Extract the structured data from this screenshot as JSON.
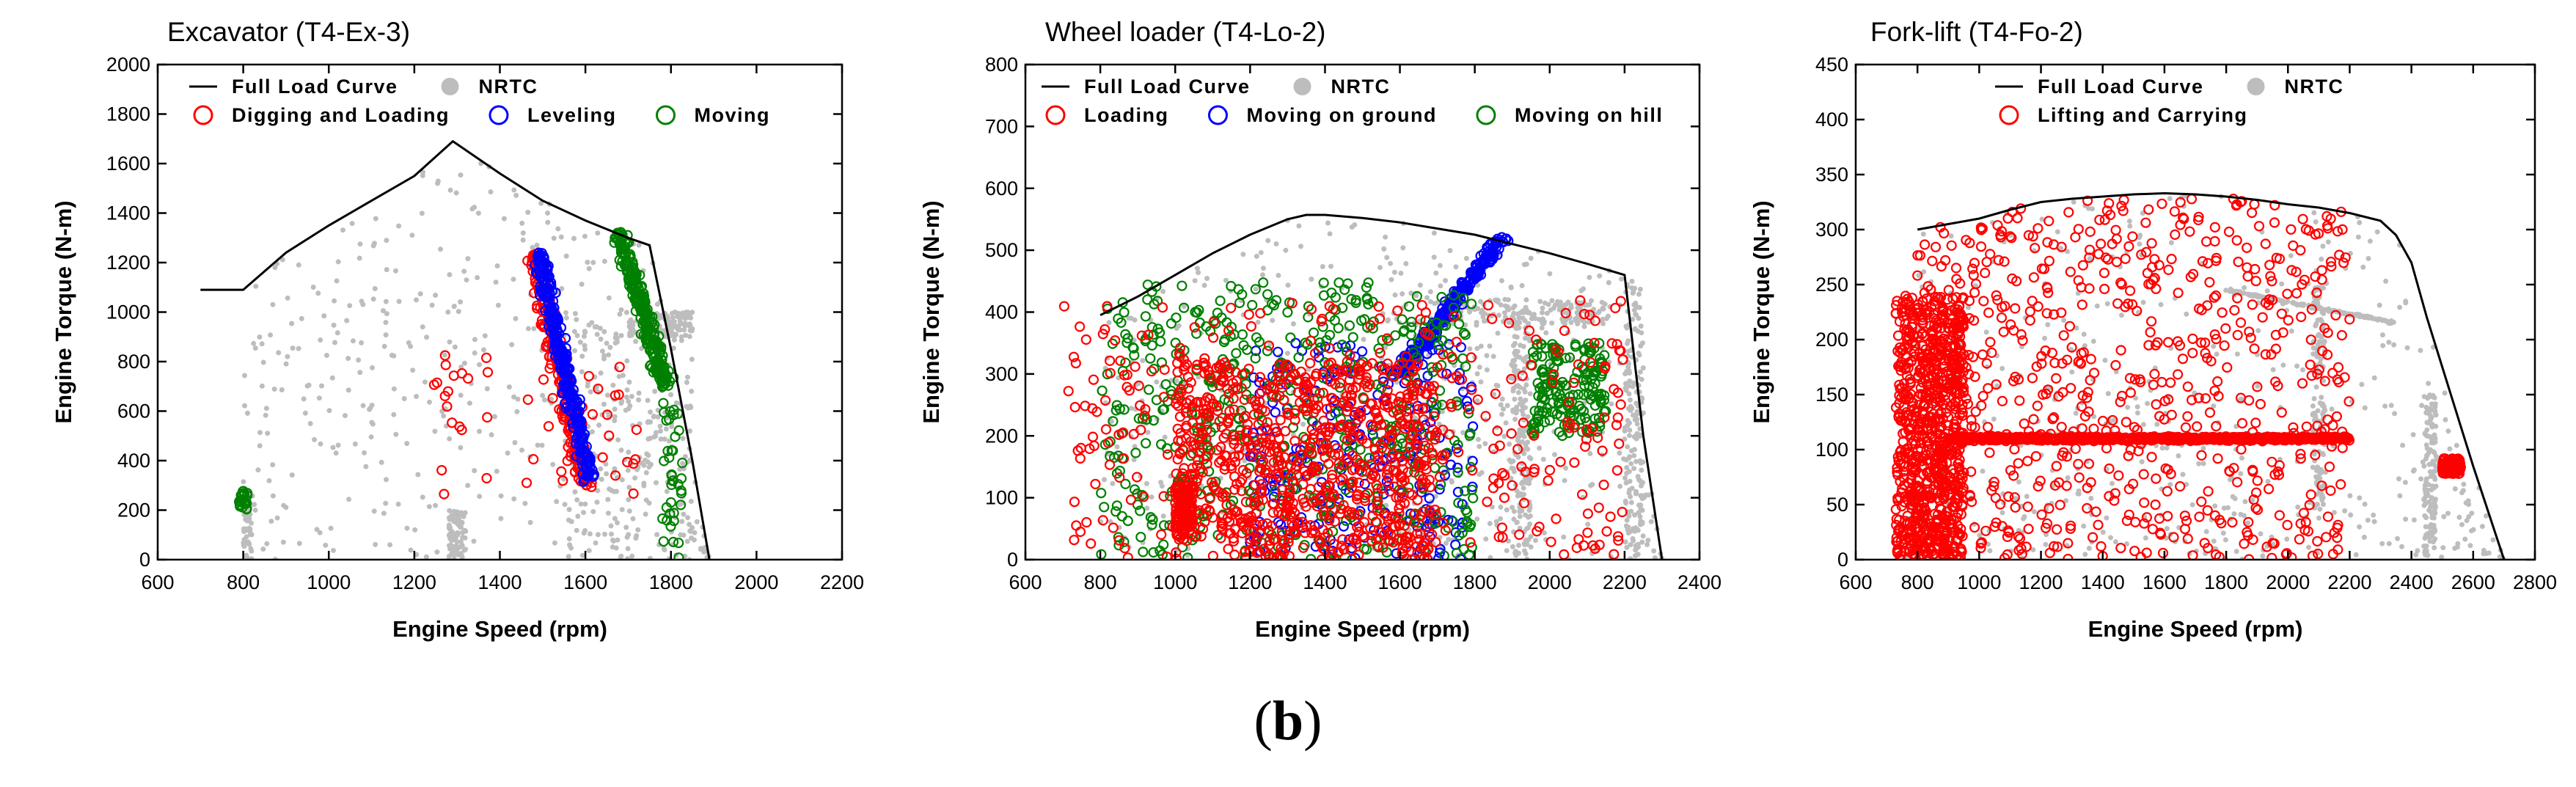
{
  "caption": {
    "open": "(",
    "letter": "b",
    "close": ")"
  },
  "chart_data": [
    {
      "type": "scatter",
      "title": "Excavator (T4-Ex-3)",
      "xlabel": "Engine Speed (rpm)",
      "ylabel": "Engine Torque (N-m)",
      "xlim": [
        600,
        2200
      ],
      "ylim": [
        0,
        2000
      ],
      "xticks": [
        600,
        800,
        1000,
        1200,
        1400,
        1600,
        1800,
        2000,
        2200
      ],
      "yticks": [
        0,
        200,
        400,
        600,
        800,
        1000,
        1200,
        1400,
        1600,
        1800,
        2000
      ],
      "full_load_curve": {
        "name": "Full Load Curve",
        "x": [
          700,
          800,
          900,
          1000,
          1100,
          1200,
          1290,
          1400,
          1500,
          1600,
          1700,
          1750,
          1800,
          1850,
          1890
        ],
        "y": [
          1090,
          1090,
          1240,
          1350,
          1450,
          1550,
          1690,
          1560,
          1450,
          1370,
          1300,
          1270,
          850,
          400,
          0
        ]
      },
      "legend": [
        {
          "name": "Full Load Curve",
          "marker": "line",
          "color": "#000000"
        },
        {
          "name": "NRTC",
          "marker": "dot",
          "color": "#bdbdbd"
        },
        {
          "name": "Digging and Loading",
          "marker": "circle",
          "color": "#ff0000"
        },
        {
          "name": "Leveling",
          "marker": "circle",
          "color": "#0000ff"
        },
        {
          "name": "Moving",
          "marker": "circle",
          "color": "#008000"
        }
      ],
      "scatter_series": [
        {
          "name": "NRTC",
          "color": "#bdbdbd",
          "filled": true,
          "radius": 3.5,
          "count": 900,
          "clusters": [
            {
              "x": [
                800,
                1890
              ],
              "y": [
                0,
                1690
              ],
              "share": 0.45,
              "envelope": true
            },
            {
              "x": [
                1550,
                1850
              ],
              "y": [
                0,
                1000
              ],
              "share": 0.25
            },
            {
              "x": [
                800,
                820
              ],
              "y": [
                0,
                260
              ],
              "share": 0.06
            },
            {
              "x": [
                1700,
                1850
              ],
              "y": [
                900,
                1000
              ],
              "share": 0.14
            },
            {
              "x": [
                1280,
                1320
              ],
              "y": [
                0,
                200
              ],
              "share": 0.1
            }
          ]
        },
        {
          "name": "Digging and Loading",
          "color": "#ff0000",
          "filled": false,
          "radius": 6,
          "count": 300,
          "clusters": [
            {
              "line": [
                [
                  1480,
                  1250
                ],
                [
                  1600,
                  300
                ]
              ],
              "spread": 35,
              "share": 0.85
            },
            {
              "x": [
                1240,
                1720
              ],
              "y": [
                250,
                850
              ],
              "share": 0.15
            }
          ]
        },
        {
          "name": "Leveling",
          "color": "#0000ff",
          "filled": false,
          "radius": 6,
          "count": 300,
          "clusters": [
            {
              "line": [
                [
                  1490,
                  1240
                ],
                [
                  1610,
                  320
                ]
              ],
              "spread": 25,
              "share": 1.0
            }
          ]
        },
        {
          "name": "Moving",
          "color": "#008000",
          "filled": false,
          "radius": 6,
          "count": 320,
          "clusters": [
            {
              "line": [
                [
                  1680,
                  1320
                ],
                [
                  1790,
                  700
                ]
              ],
              "spread": 28,
              "share": 0.8
            },
            {
              "x": [
                1780,
                1830
              ],
              "y": [
                0,
                700
              ],
              "share": 0.12
            },
            {
              "x": [
                790,
                810
              ],
              "y": [
                200,
                280
              ],
              "share": 0.08
            }
          ]
        }
      ]
    },
    {
      "type": "scatter",
      "title": "Wheel loader (T4-Lo-2)",
      "xlabel": "Engine Speed (rpm)",
      "ylabel": "Engine Torque (N-m)",
      "xlim": [
        600,
        2400
      ],
      "ylim": [
        0,
        800
      ],
      "xticks": [
        600,
        800,
        1000,
        1200,
        1400,
        1600,
        1800,
        2000,
        2200,
        2400
      ],
      "yticks": [
        0,
        100,
        200,
        300,
        400,
        500,
        600,
        700,
        800
      ],
      "full_load_curve": {
        "name": "Full Load Curve",
        "x": [
          800,
          900,
          1000,
          1100,
          1200,
          1300,
          1350,
          1400,
          1500,
          1600,
          1700,
          1800,
          1900,
          2000,
          2100,
          2200,
          2250,
          2300
        ],
        "y": [
          395,
          425,
          460,
          495,
          525,
          550,
          557,
          557,
          552,
          545,
          535,
          525,
          510,
          495,
          478,
          460,
          200,
          0
        ]
      },
      "legend": [
        {
          "name": "Full Load Curve",
          "marker": "line",
          "color": "#000000"
        },
        {
          "name": "NRTC",
          "marker": "dot",
          "color": "#bdbdbd"
        },
        {
          "name": "Loading",
          "marker": "circle",
          "color": "#ff0000"
        },
        {
          "name": "Moving on ground",
          "marker": "circle",
          "color": "#0000ff"
        },
        {
          "name": "Moving on hill",
          "marker": "circle",
          "color": "#008000"
        }
      ],
      "scatter_series": [
        {
          "name": "NRTC",
          "color": "#bdbdbd",
          "filled": true,
          "radius": 3.5,
          "count": 1100,
          "clusters": [
            {
              "x": [
                800,
                2300
              ],
              "y": [
                0,
                557
              ],
              "share": 0.4,
              "envelope": true
            },
            {
              "x": [
                1700,
                2150
              ],
              "y": [
                380,
                420
              ],
              "share": 0.15
            },
            {
              "x": [
                2200,
                2250
              ],
              "y": [
                0,
                450
              ],
              "share": 0.15
            },
            {
              "x": [
                1900,
                1950
              ],
              "y": [
                0,
                400
              ],
              "share": 0.15
            },
            {
              "x": [
                1550,
                1900
              ],
              "y": [
                0,
                500
              ],
              "share": 0.15
            }
          ]
        },
        {
          "name": "Moving on ground",
          "color": "#0000ff",
          "filled": false,
          "radius": 6,
          "count": 500,
          "clusters": [
            {
              "line": [
                [
                  1600,
                  300
                ],
                [
                  1870,
                  520
                ]
              ],
              "spread": 30,
              "share": 0.5
            },
            {
              "x": [
                1200,
                1800
              ],
              "y": [
                0,
                350
              ],
              "share": 0.5
            }
          ]
        },
        {
          "name": "Moving on hill",
          "color": "#008000",
          "filled": false,
          "radius": 6,
          "count": 700,
          "clusters": [
            {
              "x": [
                800,
                1800
              ],
              "y": [
                0,
                450
              ],
              "share": 0.75
            },
            {
              "x": [
                1950,
                2150
              ],
              "y": [
                200,
                350
              ],
              "share": 0.25
            }
          ]
        },
        {
          "name": "Loading",
          "color": "#ff0000",
          "filled": false,
          "radius": 6,
          "count": 1200,
          "clusters": [
            {
              "x": [
                1000,
                1700
              ],
              "y": [
                0,
                320
              ],
              "share": 0.6
            },
            {
              "x": [
                1000,
                1050
              ],
              "y": [
                30,
                120
              ],
              "share": 0.1
            },
            {
              "x": [
                700,
                2200
              ],
              "y": [
                0,
                420
              ],
              "share": 0.3
            }
          ]
        }
      ]
    },
    {
      "type": "scatter",
      "title": "Fork-lift (T4-Fo-2)",
      "xlabel": "Engine Speed (rpm)",
      "ylabel": "Engine Torque (N-m)",
      "xlim": [
        600,
        2800
      ],
      "ylim": [
        0,
        450
      ],
      "xticks": [
        600,
        800,
        1000,
        1200,
        1400,
        1600,
        1800,
        2000,
        2200,
        2400,
        2600,
        2800
      ],
      "yticks": [
        0,
        50,
        100,
        150,
        200,
        250,
        300,
        350,
        400,
        450
      ],
      "full_load_curve": {
        "name": "Full Load Curve",
        "x": [
          800,
          900,
          1000,
          1100,
          1200,
          1300,
          1400,
          1500,
          1600,
          1700,
          1800,
          1900,
          2000,
          2100,
          2200,
          2300,
          2350,
          2400,
          2450,
          2500,
          2600,
          2700
        ],
        "y": [
          300,
          305,
          310,
          318,
          325,
          328,
          330,
          332,
          333,
          332,
          330,
          327,
          323,
          320,
          315,
          308,
          295,
          270,
          220,
          175,
          85,
          0
        ]
      },
      "legend": [
        {
          "name": "Full Load Curve",
          "marker": "line",
          "color": "#000000"
        },
        {
          "name": "NRTC",
          "marker": "dot",
          "color": "#bdbdbd"
        },
        {
          "name": "Lifting and Carrying",
          "marker": "circle",
          "color": "#ff0000"
        }
      ],
      "scatter_series": [
        {
          "name": "NRTC",
          "color": "#bdbdbd",
          "filled": true,
          "radius": 3.5,
          "count": 900,
          "clusters": [
            {
              "x": [
                800,
                2700
              ],
              "y": [
                0,
                333
              ],
              "share": 0.4,
              "envelope": true
            },
            {
              "line": [
                [
                  1800,
                  245
                ],
                [
                  2350,
                  215
                ]
              ],
              "spread": 8,
              "share": 0.2
            },
            {
              "x": [
                2440,
                2480
              ],
              "y": [
                0,
                150
              ],
              "share": 0.15
            },
            {
              "x": [
                2080,
                2120
              ],
              "y": [
                40,
                250
              ],
              "share": 0.15
            },
            {
              "x": [
                700,
                2600
              ],
              "y": [
                0,
                60
              ],
              "share": 0.1
            }
          ]
        },
        {
          "name": "Lifting and Carrying",
          "color": "#ff0000",
          "filled": false,
          "radius": 6,
          "count": 2300,
          "clusters": [
            {
              "x": [
                730,
                950
              ],
              "y": [
                0,
                240
              ],
              "share": 0.35
            },
            {
              "line": [
                [
                  900,
                  110
                ],
                [
                  2200,
                  110
                ]
              ],
              "spread": 14,
              "share": 0.3
            },
            {
              "x": [
                800,
                2200
              ],
              "y": [
                0,
                330
              ],
              "share": 0.3,
              "envelope": true
            },
            {
              "x": [
                2500,
                2560
              ],
              "y": [
                78,
                92
              ],
              "share": 0.05
            }
          ]
        }
      ]
    }
  ]
}
